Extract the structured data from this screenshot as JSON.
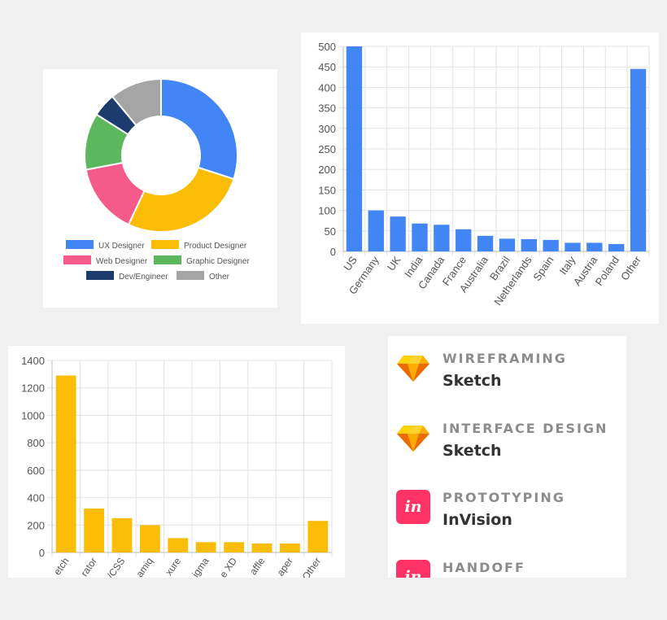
{
  "chart_data": [
    {
      "type": "pie",
      "title": "",
      "categories": [
        "UX Designer",
        "Product Designer",
        "Web Designer",
        "Graphic Designer",
        "Dev/Engineer",
        "Other"
      ],
      "values": [
        30,
        27,
        15,
        12,
        5,
        11
      ],
      "colors": [
        "#4285f4",
        "#fbbc05",
        "#f45b8a",
        "#5cb85c",
        "#1d3c6e",
        "#a5a5a5"
      ],
      "legend_position": "bottom"
    },
    {
      "type": "bar",
      "title": "",
      "categories": [
        "US",
        "Germany",
        "UK",
        "India",
        "Canada",
        "France",
        "Australia",
        "Brazil",
        "Netherlands",
        "Spain",
        "Italy",
        "Austria",
        "Poland",
        "Other"
      ],
      "values": [
        500,
        100,
        85,
        68,
        65,
        54,
        38,
        31,
        30,
        28,
        21,
        21,
        18,
        445
      ],
      "ylim": [
        0,
        500
      ],
      "yticks": [
        0,
        50,
        100,
        150,
        200,
        250,
        300,
        350,
        400,
        450,
        500
      ],
      "color": "#4285f4",
      "grid": true
    },
    {
      "type": "bar",
      "title": "",
      "categories": [
        "Sketch",
        "Illustrator",
        "HTML/CSS",
        "Balsamiq",
        "Axure",
        "Figma",
        "Adobe XD",
        "Omnigraffle",
        "Paper",
        "Other"
      ],
      "category_labels": [
        "etch",
        "rator",
        "/CSS",
        "amiq",
        "xure",
        "igma",
        "e XD",
        "affle",
        "aper",
        "Other"
      ],
      "values": [
        1290,
        320,
        250,
        200,
        105,
        75,
        75,
        65,
        65,
        230
      ],
      "ylim": [
        0,
        1400
      ],
      "yticks": [
        0,
        200,
        400,
        600,
        800,
        1000,
        1200,
        1400
      ],
      "color": "#fbbc05",
      "grid": true
    }
  ],
  "tasks": [
    {
      "category": "WIREFRAMING",
      "tool": "Sketch",
      "icon": "sketch-icon"
    },
    {
      "category": "INTERFACE DESIGN",
      "tool": "Sketch",
      "icon": "sketch-icon"
    },
    {
      "category": "PROTOTYPING",
      "tool": "InVision",
      "icon": "invision-icon",
      "icon_text": "in"
    },
    {
      "category": "HANDOFF",
      "tool": "",
      "icon": "invision-icon",
      "icon_text": "in"
    }
  ]
}
